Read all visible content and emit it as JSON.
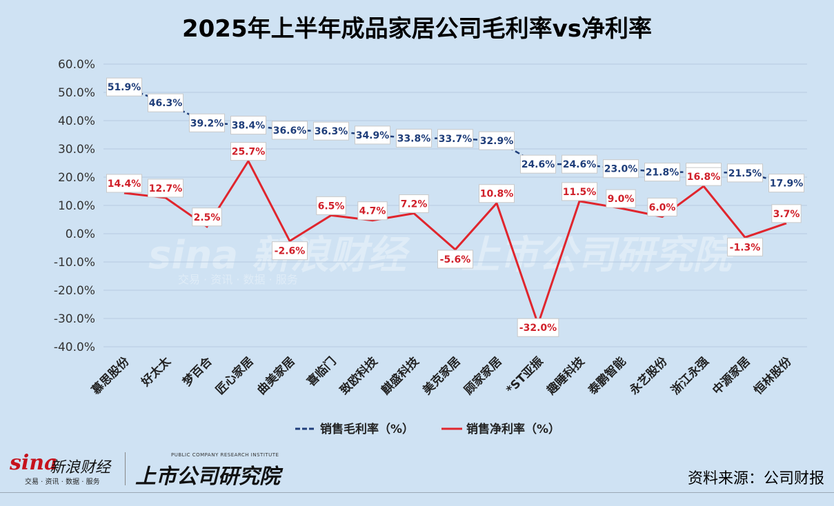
{
  "chart_data": {
    "type": "line",
    "title": "2025年上半年成品家居公司毛利率vs净利率",
    "categories": [
      "慕思股份",
      "好太太",
      "梦百合",
      "匠心家居",
      "曲美家居",
      "喜临门",
      "致欧科技",
      "麒盛科技",
      "美克家居",
      "顾家家居",
      "*ST亚振",
      "趣睡科技",
      "泰鹏智能",
      "永艺股份",
      "浙江永强",
      "中源家居",
      "恒林股份"
    ],
    "series": [
      {
        "name": "销售毛利率（%）",
        "color": "#1f3e7a",
        "values": [
          51.9,
          46.3,
          39.2,
          38.4,
          36.6,
          36.3,
          34.9,
          33.8,
          33.7,
          32.9,
          24.6,
          24.6,
          23.0,
          21.8,
          21.8,
          21.5,
          17.9
        ]
      },
      {
        "name": "销售净利率（%）",
        "color": "#e0252d",
        "values": [
          14.4,
          12.7,
          2.5,
          25.7,
          -2.6,
          6.5,
          4.7,
          7.2,
          -5.6,
          10.8,
          -32.0,
          11.5,
          9.0,
          6.0,
          16.8,
          -1.3,
          3.7
        ]
      }
    ],
    "ylim": [
      -40,
      60
    ],
    "yticks": [
      "60.0%",
      "50.0%",
      "40.0%",
      "30.0%",
      "20.0%",
      "10.0%",
      "0.0%",
      "-10.0%",
      "-20.0%",
      "-30.0%",
      "-40.0%"
    ],
    "grid": true,
    "legend_position": "bottom"
  },
  "source": "资料来源：公司财报",
  "logos": {
    "sina_brand": "sina",
    "sina_name": "新浪财经",
    "sina_tagline": "交易 · 资讯 · 数据 · 服务",
    "institute_name": "上市公司研究院",
    "institute_en": "PUBLIC COMPANY RESEARCH INSTITUTE"
  }
}
